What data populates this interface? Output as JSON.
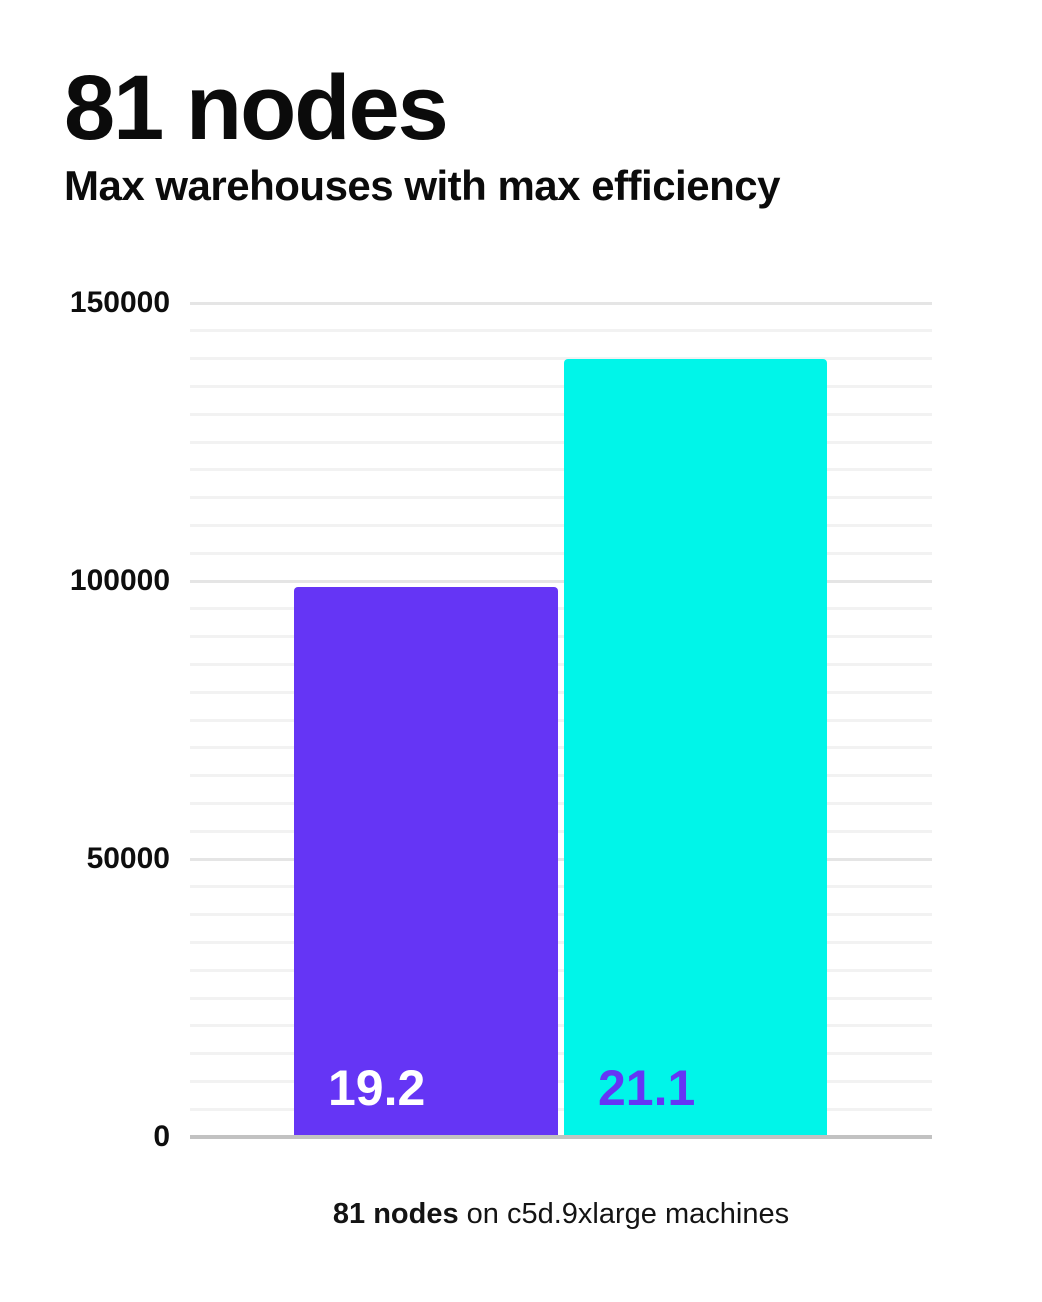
{
  "header": {
    "title": "81 nodes",
    "subtitle": "Max warehouses with max efficiency"
  },
  "chart_data": {
    "type": "bar",
    "title": "81 nodes",
    "subtitle": "Max warehouses with max efficiency",
    "ylim": [
      0,
      150000
    ],
    "yticks": [
      0,
      50000,
      100000,
      150000
    ],
    "minor_grid_step": 5000,
    "major_grid_step": 50000,
    "grid": "horizontal",
    "legend": "none",
    "xlabel": "",
    "ylabel": "",
    "bars": [
      {
        "bar_label": "19.2",
        "value": 99000,
        "color": "#6535f5",
        "label_color": "#ffffff"
      },
      {
        "bar_label": "21.1",
        "value": 140000,
        "color": "#00f5e9",
        "label_color": "#6535f5"
      }
    ],
    "caption": "81 nodes on c5d.9xlarge machines"
  },
  "caption": {
    "bold": "81 nodes",
    "rest": " on c5d.9xlarge machines"
  },
  "colors": {
    "purple": "#6535f5",
    "cyan": "#00f5e9",
    "axis": "#c2c2c2",
    "grid_major": "#e5e5e5",
    "grid_minor": "#f2f2f2",
    "text": "#0b0b0b"
  }
}
